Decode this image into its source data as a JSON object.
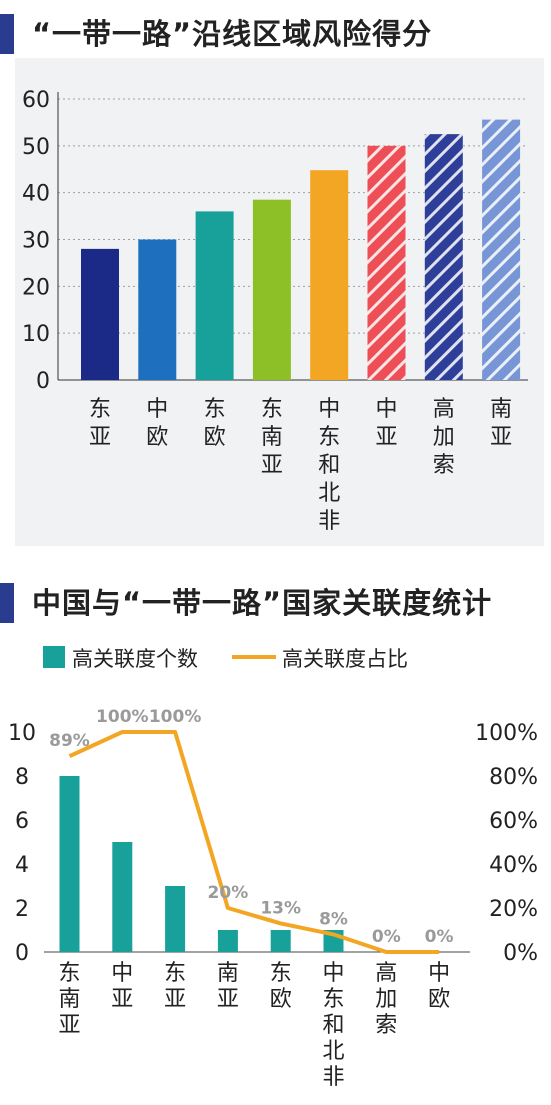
{
  "chart_data": [
    {
      "type": "bar",
      "title": "“一带一路”沿线区域风险得分",
      "categories": [
        "东亚",
        "中欧",
        "东欧",
        "东南亚",
        "中东和北非",
        "中亚",
        "高加索",
        "南亚"
      ],
      "values": [
        28,
        30,
        36,
        38.5,
        44.8,
        50,
        52.5,
        55.6
      ],
      "colors": [
        "#1a2a86",
        "#1f6fbf",
        "#18a19a",
        "#8dc027",
        "#f3a623",
        "#ee4e55",
        "#2e3f9a",
        "#7896d6"
      ],
      "hatched": [
        false,
        false,
        false,
        false,
        false,
        true,
        true,
        true
      ],
      "ylim": [
        0,
        60
      ],
      "yticks": [
        0,
        10,
        20,
        30,
        40,
        50,
        60
      ],
      "grid": true
    },
    {
      "type": "bar",
      "title": "中国与“一带一路”国家关联度统计",
      "categories": [
        "东南亚",
        "中亚",
        "东亚",
        "南亚",
        "东欧",
        "中东和北非",
        "高加索",
        "中欧"
      ],
      "legend_position": "top-left",
      "series": [
        {
          "name": "高关联度个数",
          "type": "bar",
          "axis": "left",
          "color": "#18a19a",
          "values": [
            8,
            5,
            3,
            1,
            1,
            1,
            0,
            0
          ]
        },
        {
          "name": "高关联度占比",
          "type": "line",
          "axis": "right",
          "color": "#f3a623",
          "values": [
            0.89,
            1.0,
            1.0,
            0.2,
            0.13,
            0.08,
            0,
            0
          ],
          "labels": [
            "89%",
            "100%",
            "100%",
            "20%",
            "13%",
            "8%",
            "0%",
            "0%"
          ]
        }
      ],
      "ylim_left": [
        0,
        10
      ],
      "yticks_left": [
        0,
        2,
        4,
        6,
        8,
        10
      ],
      "ylim_right": [
        0,
        1
      ],
      "yticks_right": [
        "0%",
        "20%",
        "40%",
        "60%",
        "80%",
        "100%"
      ]
    }
  ]
}
